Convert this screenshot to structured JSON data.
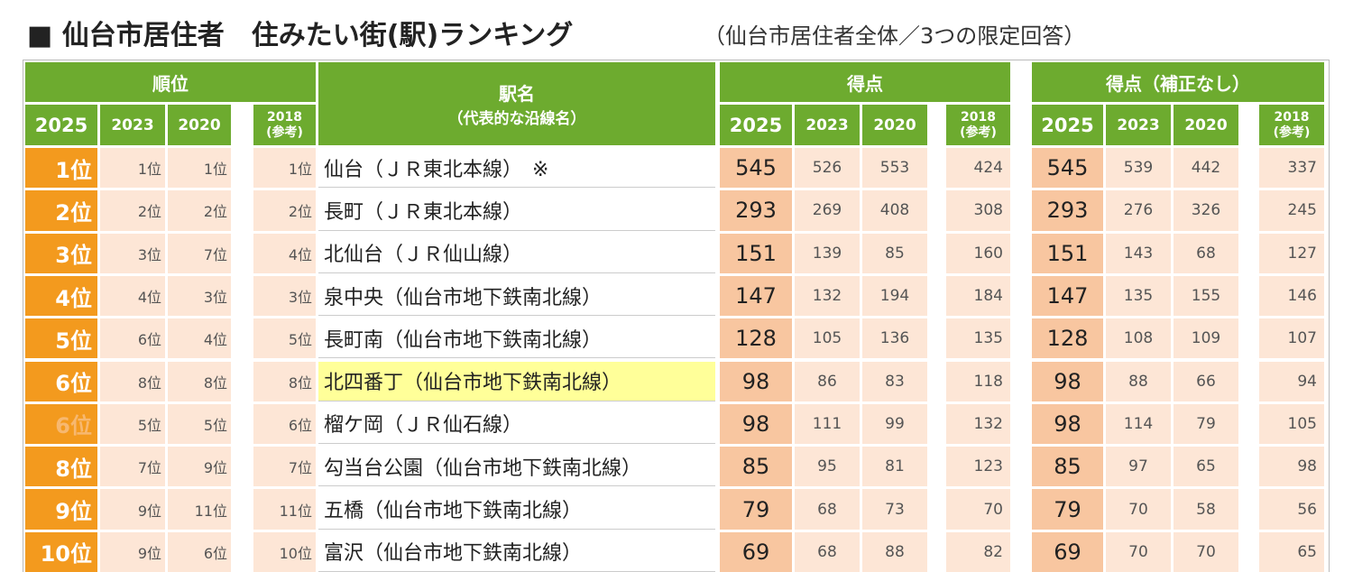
{
  "header": {
    "title": "■ 仙台市居住者　住みたい街(駅)ランキング",
    "subtitle": "（仙台市居住者全体／3つの限定回答）"
  },
  "table": {
    "groups": [
      "順位",
      "駅名",
      "得点",
      "得点（補正なし）"
    ],
    "station_note": "（代表的な沿線名）",
    "years": [
      "2025",
      "2023",
      "2020",
      "2018"
    ],
    "reference": "(参考)",
    "rows": [
      [
        "1位",
        "1位",
        "1位",
        "1位",
        "仙台（ＪＲ東北本線）　※",
        545,
        526,
        553,
        424,
        545,
        539,
        442,
        337
      ],
      [
        "2位",
        "2位",
        "2位",
        "2位",
        "長町（ＪＲ東北本線）",
        293,
        269,
        408,
        308,
        293,
        276,
        326,
        245
      ],
      [
        "3位",
        "3位",
        "7位",
        "4位",
        "北仙台（ＪＲ仙山線）",
        151,
        139,
        85,
        160,
        151,
        143,
        68,
        127
      ],
      [
        "4位",
        "4位",
        "3位",
        "3位",
        "泉中央（仙台市地下鉄南北線）",
        147,
        132,
        194,
        184,
        147,
        135,
        155,
        146
      ],
      [
        "5位",
        "6位",
        "4位",
        "5位",
        "長町南（仙台市地下鉄南北線）",
        128,
        105,
        136,
        135,
        128,
        108,
        109,
        107
      ],
      [
        "6位",
        "8位",
        "8位",
        "8位",
        "北四番丁（仙台市地下鉄南北線）",
        98,
        86,
        83,
        118,
        98,
        88,
        66,
        94
      ],
      [
        "6位",
        "5位",
        "5位",
        "6位",
        "榴ケ岡（ＪＲ仙石線）",
        98,
        111,
        99,
        132,
        98,
        114,
        79,
        105
      ],
      [
        "8位",
        "7位",
        "9位",
        "7位",
        "勾当台公園（仙台市地下鉄南北線）",
        85,
        95,
        81,
        123,
        85,
        97,
        65,
        98
      ],
      [
        "9位",
        "9位",
        "11位",
        "11位",
        "五橋（仙台市地下鉄南北線）",
        79,
        68,
        73,
        70,
        79,
        70,
        58,
        56
      ],
      [
        "10位",
        "9位",
        "6位",
        "10位",
        "富沢（仙台市地下鉄南北線）",
        69,
        68,
        88,
        82,
        69,
        70,
        70,
        65
      ]
    ]
  }
}
